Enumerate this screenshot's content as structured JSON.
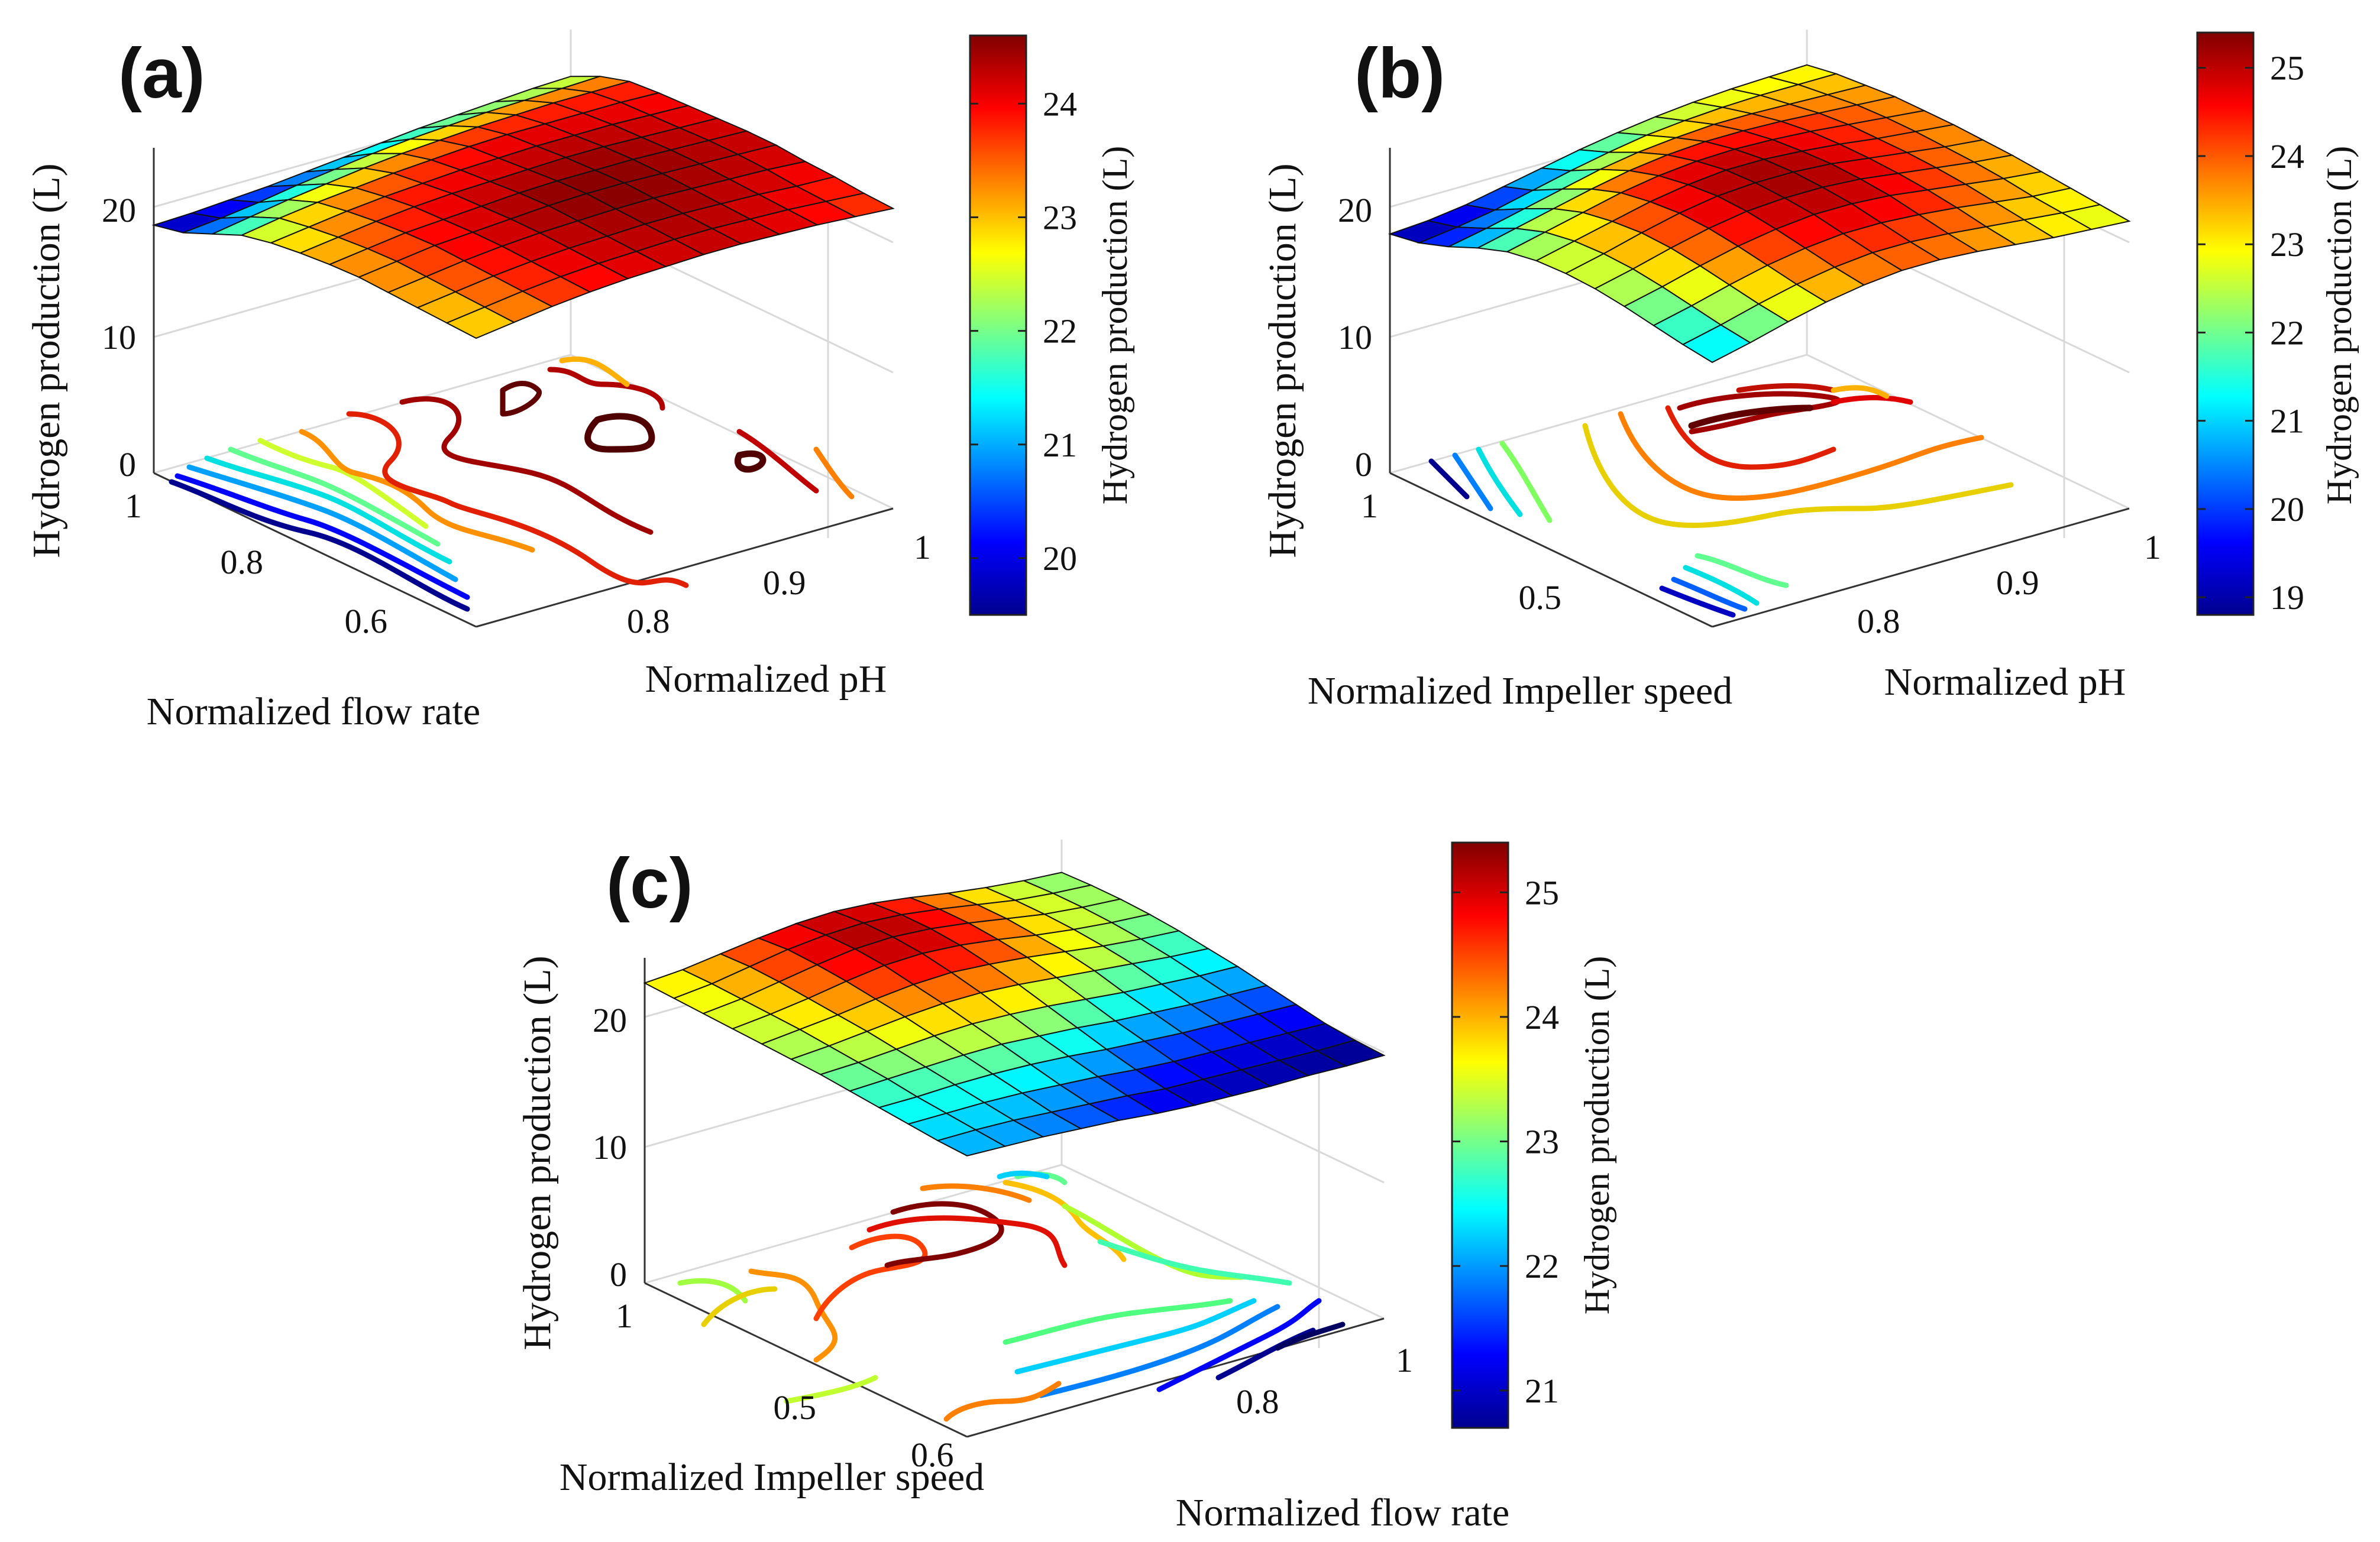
{
  "colormap": [
    "#00008f",
    "#0000ff",
    "#0080ff",
    "#00ffff",
    "#80ff80",
    "#ffff00",
    "#ff8000",
    "#ff0000",
    "#800000"
  ],
  "chart_data": [
    {
      "type": "surface",
      "panel_label": "(a)",
      "title": "",
      "xlabel": "Normalized flow rate",
      "ylabel": "Normalized pH",
      "zlabel": "Hydrogen production (L)",
      "colorbar_label": "Hydrogen production (L)",
      "x_range": [
        0.5,
        1
      ],
      "y_range": [
        0.7,
        1
      ],
      "zlim": [
        0,
        25
      ],
      "x_ticks": [
        {
          "value": 0.6,
          "label": "0.6"
        },
        {
          "value": 0.8,
          "label": "0.8"
        },
        {
          "value": 1.0,
          "label": "1"
        }
      ],
      "y_ticks": [
        {
          "value": 0.8,
          "label": "0.8"
        },
        {
          "value": 0.9,
          "label": "0.9"
        },
        {
          "value": 1.0,
          "label": "1"
        }
      ],
      "z_ticks": [
        {
          "value": 0,
          "label": "0"
        },
        {
          "value": 10,
          "label": "10"
        },
        {
          "value": 20,
          "label": "20"
        }
      ],
      "colorbar_range": [
        19.5,
        24.6
      ],
      "colorbar_ticks": [
        {
          "value": 20,
          "label": "20"
        },
        {
          "value": 21,
          "label": "21"
        },
        {
          "value": 22,
          "label": "22"
        },
        {
          "value": 23,
          "label": "23"
        },
        {
          "value": 24,
          "label": "24"
        }
      ],
      "z_grid": [
        [
          19.5,
          19.6,
          19.8,
          20.0,
          20.3,
          20.6,
          20.9,
          21.2,
          21.4,
          21.6,
          21.8,
          21.9
        ],
        [
          20.0,
          20.3,
          20.7,
          21.2,
          21.6,
          22.0,
          22.3,
          22.5,
          22.7,
          22.8,
          22.9,
          23.0
        ],
        [
          21.0,
          21.5,
          22.0,
          22.4,
          22.8,
          23.1,
          23.3,
          23.5,
          23.6,
          23.7,
          23.7,
          23.7
        ],
        [
          22.0,
          22.5,
          22.9,
          23.2,
          23.5,
          23.7,
          23.9,
          24.0,
          24.0,
          24.0,
          24.0,
          23.9
        ],
        [
          22.5,
          22.9,
          23.3,
          23.6,
          23.8,
          24.0,
          24.1,
          24.2,
          24.2,
          24.2,
          24.1,
          24.0
        ],
        [
          22.8,
          23.2,
          23.6,
          23.9,
          24.1,
          24.2,
          24.3,
          24.4,
          24.4,
          24.3,
          24.2,
          24.1
        ],
        [
          23.0,
          23.4,
          23.8,
          24.0,
          24.2,
          24.4,
          24.5,
          24.5,
          24.5,
          24.4,
          24.3,
          24.2
        ],
        [
          23.1,
          23.5,
          23.9,
          24.1,
          24.3,
          24.5,
          24.6,
          24.6,
          24.5,
          24.4,
          24.3,
          24.2
        ],
        [
          23.0,
          23.4,
          23.8,
          24.1,
          24.3,
          24.4,
          24.5,
          24.5,
          24.4,
          24.3,
          24.2,
          24.0
        ],
        [
          22.9,
          23.3,
          23.7,
          24.0,
          24.2,
          24.3,
          24.4,
          24.4,
          24.3,
          24.2,
          24.0,
          23.9
        ],
        [
          22.8,
          23.2,
          23.6,
          23.9,
          24.1,
          24.2,
          24.3,
          24.3,
          24.2,
          24.1,
          23.9,
          23.7
        ],
        [
          22.7,
          23.1,
          23.5,
          23.8,
          24.0,
          24.1,
          24.2,
          24.2,
          24.1,
          24.0,
          23.8,
          23.6
        ]
      ]
    },
    {
      "type": "surface",
      "panel_label": "(b)",
      "title": "",
      "xlabel": "Normalized Impeller speed",
      "ylabel": "Normalized pH",
      "zlabel": "Hydrogen production (L)",
      "colorbar_label": "Hydrogen production (L)",
      "x_range": [
        0.2,
        1
      ],
      "y_range": [
        0.7,
        1
      ],
      "zlim": [
        0,
        25
      ],
      "x_ticks": [
        {
          "value": 0.5,
          "label": "0.5"
        },
        {
          "value": 1.0,
          "label": "1"
        }
      ],
      "y_ticks": [
        {
          "value": 0.8,
          "label": "0.8"
        },
        {
          "value": 0.9,
          "label": "0.9"
        },
        {
          "value": 1.0,
          "label": "1"
        }
      ],
      "z_ticks": [
        {
          "value": 0,
          "label": "0"
        },
        {
          "value": 10,
          "label": "10"
        },
        {
          "value": 20,
          "label": "20"
        }
      ],
      "colorbar_range": [
        18.8,
        25.4
      ],
      "colorbar_ticks": [
        {
          "value": 19,
          "label": "19"
        },
        {
          "value": 20,
          "label": "20"
        },
        {
          "value": 21,
          "label": "21"
        },
        {
          "value": 22,
          "label": "22"
        },
        {
          "value": 23,
          "label": "23"
        },
        {
          "value": 24,
          "label": "24"
        },
        {
          "value": 25,
          "label": "25"
        }
      ],
      "z_grid": [
        [
          18.8,
          19.0,
          19.4,
          20.0,
          20.6,
          21.2,
          21.7,
          22.1,
          22.4,
          22.6,
          22.7,
          22.8
        ],
        [
          19.2,
          19.6,
          20.1,
          20.8,
          21.5,
          22.1,
          22.6,
          22.9,
          23.1,
          23.2,
          23.2,
          23.2
        ],
        [
          20.0,
          20.6,
          21.3,
          22.0,
          22.7,
          23.2,
          23.5,
          23.7,
          23.7,
          23.6,
          23.5,
          23.4
        ],
        [
          21.0,
          21.7,
          22.4,
          23.1,
          23.7,
          24.1,
          24.3,
          24.3,
          24.2,
          24.0,
          23.8,
          23.6
        ],
        [
          21.8,
          22.5,
          23.2,
          23.9,
          24.4,
          24.7,
          24.8,
          24.7,
          24.5,
          24.2,
          23.9,
          23.6
        ],
        [
          22.2,
          22.9,
          23.6,
          24.3,
          24.8,
          25.1,
          25.1,
          24.9,
          24.6,
          24.2,
          23.9,
          23.6
        ],
        [
          22.3,
          23.0,
          23.8,
          24.5,
          25.0,
          25.2,
          25.2,
          25.0,
          24.6,
          24.2,
          23.8,
          23.5
        ],
        [
          22.2,
          22.9,
          23.7,
          24.4,
          24.9,
          25.1,
          25.1,
          24.9,
          24.5,
          24.1,
          23.7,
          23.4
        ],
        [
          21.9,
          22.6,
          23.4,
          24.1,
          24.6,
          24.9,
          24.9,
          24.7,
          24.3,
          23.9,
          23.5,
          23.2
        ],
        [
          21.5,
          22.2,
          23.0,
          23.7,
          24.2,
          24.5,
          24.5,
          24.3,
          24.0,
          23.6,
          23.2,
          23.0
        ],
        [
          21.1,
          21.8,
          22.6,
          23.3,
          23.8,
          24.1,
          24.1,
          23.9,
          23.6,
          23.3,
          23.0,
          22.8
        ],
        [
          20.8,
          21.5,
          22.3,
          23.0,
          23.5,
          23.8,
          23.8,
          23.6,
          23.3,
          23.0,
          22.8,
          22.6
        ]
      ]
    },
    {
      "type": "surface",
      "panel_label": "(c)",
      "title": "",
      "xlabel": "Normalized Impeller speed",
      "ylabel": "Normalized flow rate",
      "zlabel": "Hydrogen production (L)",
      "colorbar_label": "Hydrogen production (L)",
      "x_range": [
        0.2,
        1
      ],
      "y_range": [
        0.5,
        1
      ],
      "zlim": [
        0,
        25
      ],
      "x_ticks": [
        {
          "value": 0.5,
          "label": "0.5"
        },
        {
          "value": 1.0,
          "label": "1"
        }
      ],
      "y_ticks": [
        {
          "value": 0.6,
          "label": "0.6"
        },
        {
          "value": 0.8,
          "label": "0.8"
        },
        {
          "value": 1.0,
          "label": "1"
        }
      ],
      "z_ticks": [
        {
          "value": 0,
          "label": "0"
        },
        {
          "value": 10,
          "label": "10"
        },
        {
          "value": 20,
          "label": "20"
        }
      ],
      "colorbar_range": [
        20.7,
        25.4
      ],
      "colorbar_ticks": [
        {
          "value": 21,
          "label": "21"
        },
        {
          "value": 22,
          "label": "22"
        },
        {
          "value": 23,
          "label": "23"
        },
        {
          "value": 24,
          "label": "24"
        },
        {
          "value": 25,
          "label": "25"
        }
      ],
      "z_grid": [
        [
          23.6,
          23.8,
          24.2,
          24.6,
          24.9,
          25.0,
          24.8,
          24.4,
          23.9,
          23.5,
          23.2,
          23.0
        ],
        [
          23.5,
          23.8,
          24.3,
          24.8,
          25.1,
          25.2,
          25.0,
          24.6,
          24.1,
          23.6,
          23.3,
          23.1
        ],
        [
          23.4,
          23.7,
          24.2,
          24.7,
          25.1,
          25.2,
          25.0,
          24.6,
          24.1,
          23.6,
          23.3,
          23.1
        ],
        [
          23.3,
          23.6,
          24.0,
          24.5,
          24.9,
          25.0,
          24.8,
          24.4,
          23.9,
          23.5,
          23.2,
          23.0
        ],
        [
          23.2,
          23.5,
          23.8,
          24.2,
          24.5,
          24.6,
          24.4,
          24.1,
          23.7,
          23.3,
          23.0,
          22.8
        ],
        [
          23.1,
          23.3,
          23.6,
          23.9,
          24.1,
          24.1,
          23.9,
          23.6,
          23.3,
          23.0,
          22.7,
          22.5
        ],
        [
          23.0,
          23.1,
          23.3,
          23.5,
          23.6,
          23.5,
          23.3,
          23.0,
          22.7,
          22.5,
          22.3,
          22.2
        ],
        [
          22.8,
          22.9,
          23.0,
          23.1,
          23.1,
          22.9,
          22.7,
          22.4,
          22.2,
          22.0,
          21.9,
          21.8
        ],
        [
          22.6,
          22.6,
          22.7,
          22.7,
          22.6,
          22.4,
          22.1,
          21.9,
          21.7,
          21.6,
          21.5,
          21.4
        ],
        [
          22.4,
          22.4,
          22.4,
          22.3,
          22.1,
          21.9,
          21.6,
          21.4,
          21.3,
          21.2,
          21.1,
          21.0
        ],
        [
          22.2,
          22.2,
          22.1,
          21.9,
          21.7,
          21.5,
          21.2,
          21.1,
          21.0,
          20.9,
          20.8,
          20.8
        ],
        [
          22.1,
          22.0,
          21.9,
          21.7,
          21.5,
          21.2,
          21.0,
          20.9,
          20.8,
          20.8,
          20.7,
          20.7
        ]
      ]
    }
  ]
}
